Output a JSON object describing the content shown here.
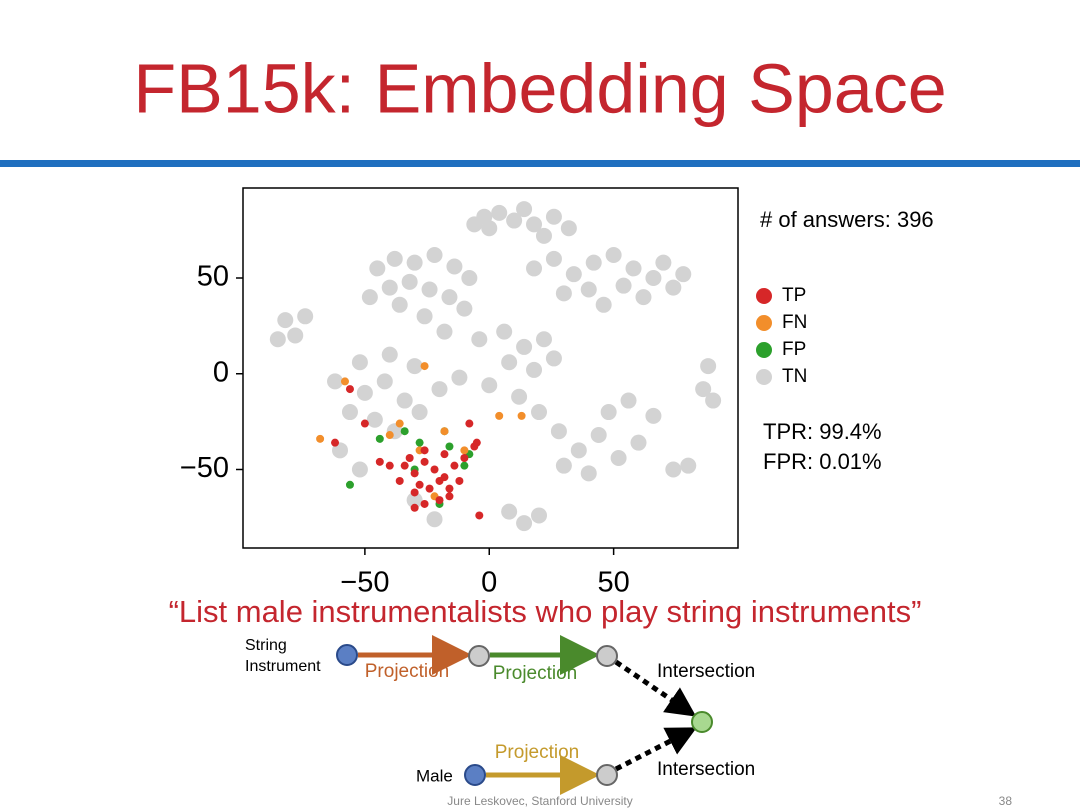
{
  "slide": {
    "title": "FB15k: Embedding Space",
    "answers": "# of answers: 396",
    "tpr": "TPR: 99.4%",
    "fpr": "FPR: 0.01%",
    "query": "“List male instrumentalists who play string instruments”",
    "diagram": {
      "anchor1": [
        "String",
        "Instrument"
      ],
      "anchor2": "Male",
      "edges": [
        "Projection",
        "Projection",
        "Projection"
      ],
      "intersections": [
        "Intersection",
        "Intersection"
      ]
    },
    "footer": "Jure Leskovec, Stanford University",
    "page": "38"
  },
  "chart_data": {
    "type": "scatter",
    "xlim": [
      -99,
      100
    ],
    "ylim": [
      -91,
      97
    ],
    "xticks": [
      {
        "value": -50,
        "label": "−50"
      },
      0,
      50
    ],
    "yticks": [
      {
        "value": -50,
        "label": "−50"
      },
      0,
      50
    ],
    "grid": false,
    "series": [
      {
        "name": "TP",
        "color": "#d62728",
        "x": [
          -34,
          -30,
          -26,
          -22,
          -18,
          -14,
          -10,
          -28,
          -24,
          -20,
          -16,
          -12,
          -32,
          -26,
          -18,
          -6,
          -36,
          -30,
          -20,
          -40,
          -44,
          -62,
          -56,
          -50,
          -8,
          -5,
          -26,
          -30,
          -16,
          -4
        ],
        "y": [
          -48,
          -52,
          -46,
          -50,
          -54,
          -48,
          -44,
          -58,
          -60,
          -56,
          -60,
          -56,
          -44,
          -40,
          -42,
          -38,
          -56,
          -62,
          -66,
          -48,
          -46,
          -36,
          -8,
          -26,
          -26,
          -36,
          -68,
          -70,
          -64,
          -74
        ]
      },
      {
        "name": "FN",
        "color": "#f28e2b",
        "x": [
          -58,
          -68,
          -26,
          4,
          13,
          -36,
          -40,
          -18,
          -22,
          -28,
          -10
        ],
        "y": [
          -4,
          -34,
          4,
          -22,
          -22,
          -26,
          -32,
          -30,
          -64,
          -40,
          -40
        ]
      },
      {
        "name": "FP",
        "color": "#2ca02c",
        "x": [
          -56,
          -34,
          -44,
          -18,
          -28,
          -16,
          -20,
          -10,
          -30,
          -8
        ],
        "y": [
          -58,
          -30,
          -34,
          -30,
          -36,
          -38,
          -68,
          -48,
          -50,
          -42
        ]
      },
      {
        "name": "TN",
        "color": "#d3d3d3",
        "x": [
          -2,
          4,
          10,
          18,
          26,
          32,
          0,
          -6,
          14,
          22,
          -45,
          -38,
          -30,
          -22,
          -14,
          -8,
          -40,
          -32,
          -24,
          -16,
          -36,
          -26,
          -10,
          -48,
          -18,
          18,
          26,
          34,
          42,
          50,
          58,
          66,
          74,
          62,
          54,
          40,
          30,
          70,
          78,
          46,
          -82,
          -78,
          -85,
          -74,
          -4,
          6,
          14,
          22,
          8,
          18,
          26,
          0,
          12,
          20,
          -50,
          -42,
          -34,
          -46,
          -56,
          -60,
          -52,
          -38,
          -28,
          -20,
          -12,
          -30,
          -40,
          -52,
          -62,
          28,
          36,
          44,
          52,
          60,
          40,
          30,
          66,
          56,
          48,
          74,
          80,
          86,
          90,
          88,
          8,
          14,
          20,
          -30,
          -22
        ],
        "y": [
          82,
          84,
          80,
          78,
          82,
          76,
          76,
          78,
          86,
          72,
          55,
          60,
          58,
          62,
          56,
          50,
          45,
          48,
          44,
          40,
          36,
          30,
          34,
          40,
          22,
          55,
          60,
          52,
          58,
          62,
          55,
          50,
          45,
          40,
          46,
          44,
          42,
          58,
          52,
          36,
          28,
          20,
          18,
          30,
          18,
          22,
          14,
          18,
          6,
          2,
          8,
          -6,
          -12,
          -20,
          -10,
          -4,
          -14,
          -24,
          -20,
          -40,
          -50,
          -30,
          -20,
          -8,
          -2,
          4,
          10,
          6,
          -4,
          -30,
          -40,
          -32,
          -44,
          -36,
          -52,
          -48,
          -22,
          -14,
          -20,
          -50,
          -48,
          -8,
          -14,
          4,
          -72,
          -78,
          -74,
          -66,
          -76
        ]
      }
    ]
  }
}
